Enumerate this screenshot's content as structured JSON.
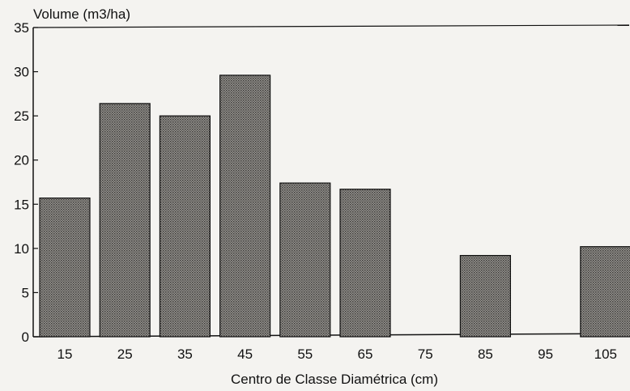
{
  "chart_data": {
    "type": "bar",
    "title": "",
    "ylabel": "Volume (m3/ha)",
    "xlabel": "Centro de Classe Diamétrica (cm)",
    "categories": [
      "15",
      "25",
      "35",
      "45",
      "55",
      "65",
      "75",
      "85",
      "95",
      "105"
    ],
    "values": [
      15.7,
      26.4,
      25.0,
      29.6,
      17.4,
      16.7,
      0,
      9.2,
      0,
      10.2
    ],
    "ylim": [
      0,
      35
    ],
    "yticks": [
      "0",
      "5",
      "10",
      "15",
      "20",
      "25",
      "30",
      "35"
    ],
    "grid": false,
    "legend": "none",
    "bar_color": "#8c8a86",
    "frame_color": "#111111"
  }
}
